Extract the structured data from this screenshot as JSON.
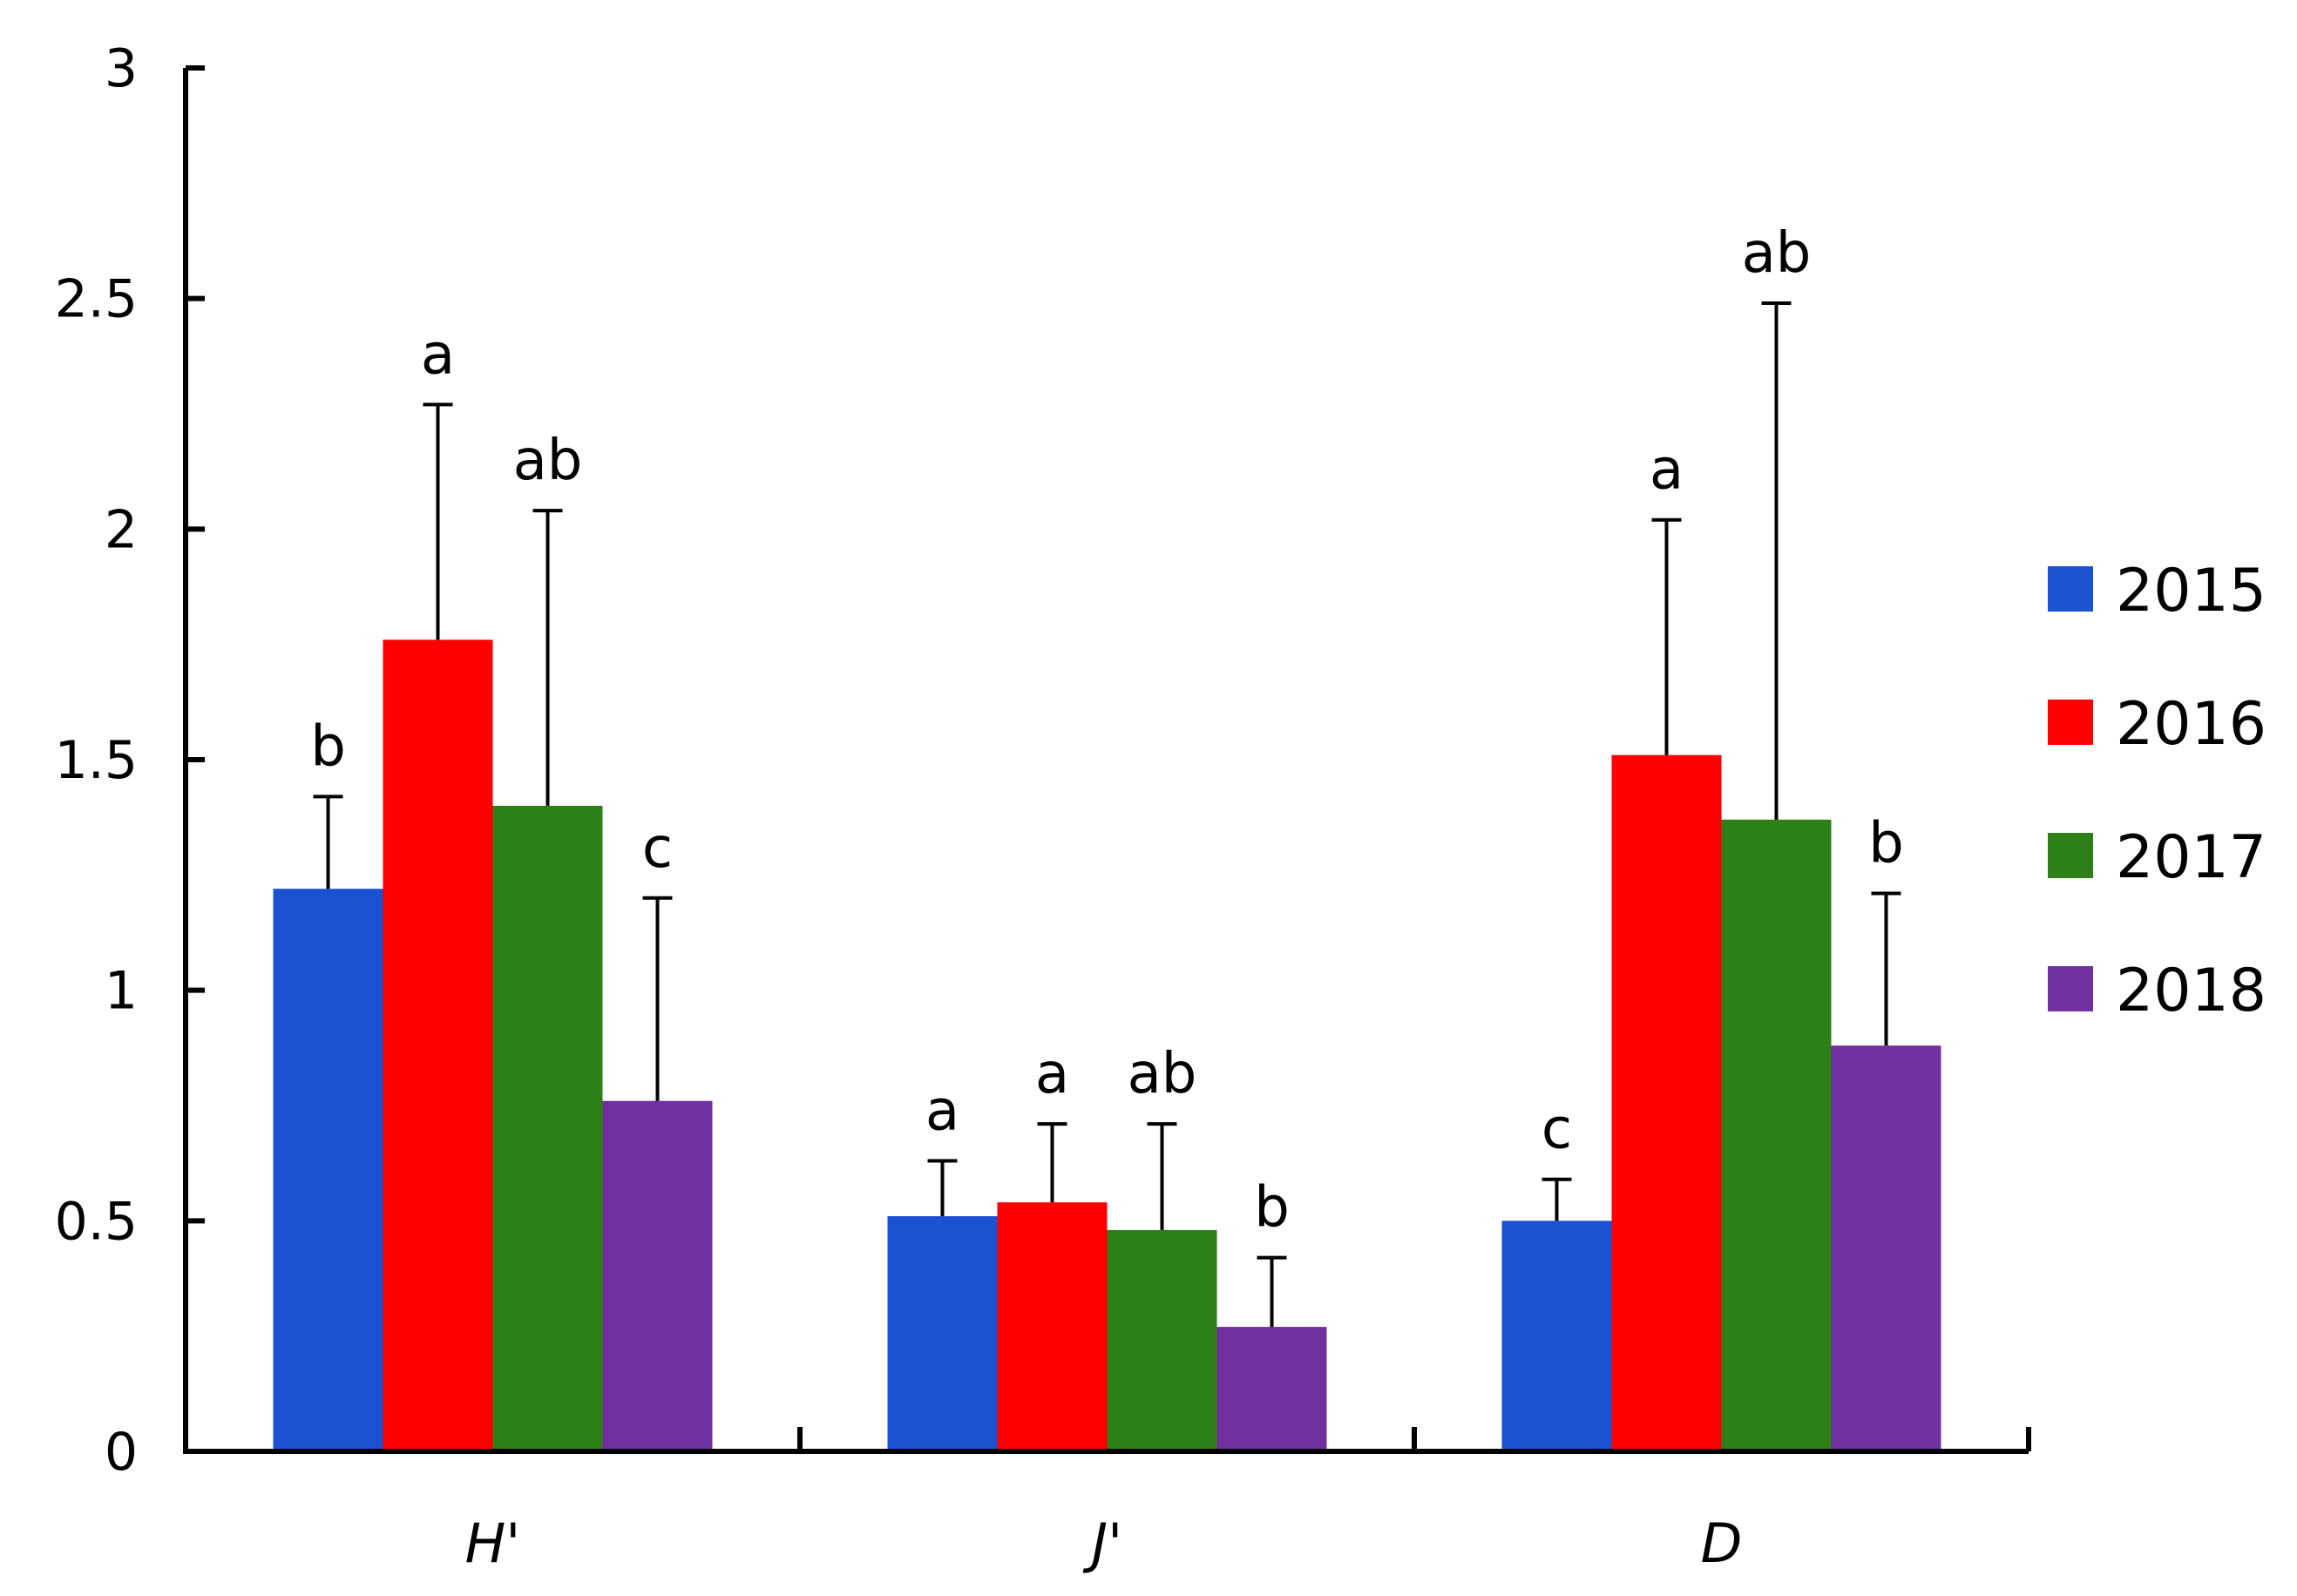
{
  "chart_data": {
    "type": "bar",
    "title": "",
    "xlabel": "",
    "ylabel": "",
    "ylim": [
      0,
      3
    ],
    "yticks": [
      0,
      0.5,
      1,
      1.5,
      2,
      2.5,
      3
    ],
    "ytick_labels": [
      "0",
      "0.5",
      "1",
      "1.5",
      "2",
      "2.5",
      "3"
    ],
    "grid": false,
    "legend_position": "right",
    "categories": [
      "H'",
      "J'",
      "D"
    ],
    "series": [
      {
        "name": "2015",
        "color": "#1a52d1",
        "values": [
          1.22,
          0.51,
          0.5
        ],
        "errors": [
          0.2,
          0.12,
          0.09
        ],
        "sig_letters": [
          "b",
          "a",
          "c"
        ]
      },
      {
        "name": "2016",
        "color": "#ff0000",
        "values": [
          1.76,
          0.54,
          1.51
        ],
        "errors": [
          0.51,
          0.17,
          0.51
        ],
        "sig_letters": [
          "a",
          "a",
          "a"
        ]
      },
      {
        "name": "2017",
        "color": "#2c8017",
        "values": [
          1.4,
          0.48,
          1.37
        ],
        "errors": [
          0.64,
          0.23,
          1.12
        ],
        "sig_letters": [
          "ab",
          "ab",
          "ab"
        ]
      },
      {
        "name": "2018",
        "color": "#7030a0",
        "values": [
          0.76,
          0.27,
          0.88
        ],
        "errors": [
          0.44,
          0.15,
          0.33
        ],
        "sig_letters": [
          "c",
          "b",
          "b"
        ]
      }
    ]
  }
}
